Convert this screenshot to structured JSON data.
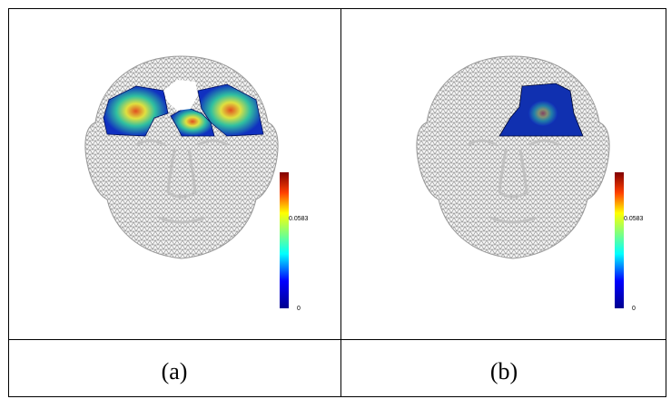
{
  "panels": [
    {
      "caption": "(a)",
      "colorbar": {
        "max_label": "0.0583",
        "min_label": "0"
      }
    },
    {
      "caption": "(b)",
      "colorbar": {
        "max_label": "0.0583",
        "min_label": "0"
      }
    }
  ]
}
